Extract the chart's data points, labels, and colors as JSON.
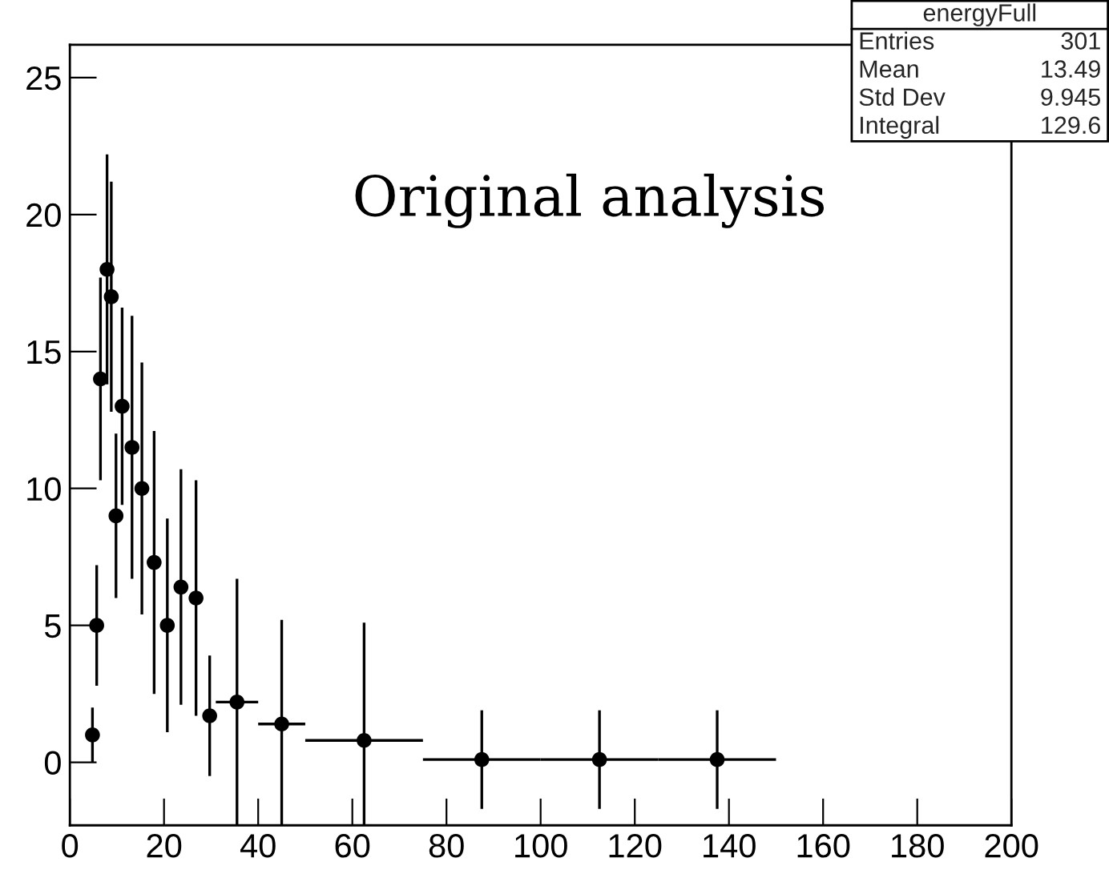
{
  "chart_data": {
    "type": "scatter",
    "title": "energyFull",
    "x": [
      4.8,
      5.7,
      6.5,
      7.9,
      8.8,
      9.8,
      11.1,
      13.2,
      15.3,
      17.9,
      20.7,
      23.6,
      26.8,
      29.7,
      35.5,
      45,
      62.5,
      87.5,
      112.5,
      137.5
    ],
    "series": [
      {
        "color": "#000000",
        "values": [
          1,
          5,
          14,
          18,
          17,
          9,
          13,
          11.5,
          10,
          7.3,
          5,
          6.4,
          6,
          1.7,
          2.2,
          1.4,
          0.8,
          0.1,
          0.1,
          0.1
        ],
        "errors": [
          1,
          2.2,
          3.7,
          4.2,
          4.2,
          3,
          3.6,
          4.8,
          4.6,
          4.8,
          3.9,
          4.3,
          4.3,
          2.2,
          4.5,
          3.8,
          4.3,
          1.8,
          1.8,
          1.8
        ],
        "xerrors": [
          null,
          null,
          null,
          null,
          null,
          null,
          null,
          null,
          null,
          null,
          null,
          null,
          null,
          null,
          4.5,
          5,
          12.5,
          12.5,
          12.5,
          12.5
        ]
      }
    ],
    "xlim": [
      0,
      200
    ],
    "xticks": [
      0,
      20,
      40,
      60,
      80,
      100,
      120,
      140,
      160,
      180,
      200
    ],
    "ylim": [
      -2.3,
      26.2
    ],
    "yticks": [
      0,
      5,
      10,
      15,
      20,
      25
    ],
    "marker": "circle",
    "grid": false,
    "legend": false,
    "annotations": [
      "Original analysis",
      "Entries 301",
      "Mean 13.49",
      "Std Dev 9.945",
      "Integral 129.6"
    ]
  }
}
